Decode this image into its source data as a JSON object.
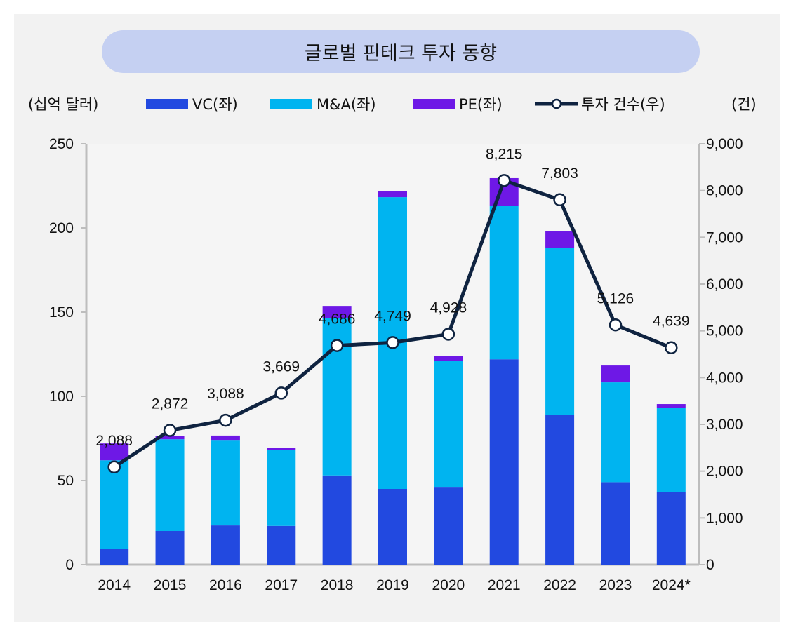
{
  "title": "글로벌 핀테크 투자 동향",
  "left_unit": "(십억 달러)",
  "right_unit": "(건)",
  "legend": [
    {
      "label": "VC(좌)",
      "color": "#2249e0",
      "type": "bar"
    },
    {
      "label": "M&A(좌)",
      "color": "#00b4f0",
      "type": "bar"
    },
    {
      "label": "PE(좌)",
      "color": "#6e18e6",
      "type": "bar"
    },
    {
      "label": "투자 건수(우)",
      "color": "#0f2340",
      "type": "line"
    }
  ],
  "chart_data": {
    "type": "bar",
    "title": "글로벌 핀테크 투자 동향",
    "xlabel": "",
    "ylabel": "(십억 달러)",
    "y2label": "(건)",
    "categories": [
      "2014",
      "2015",
      "2016",
      "2017",
      "2018",
      "2019",
      "2020",
      "2021",
      "2022",
      "2023",
      "2024*"
    ],
    "ylim": [
      0,
      250
    ],
    "yticks": [
      0,
      50,
      100,
      150,
      200,
      250
    ],
    "y2lim": [
      0,
      9000
    ],
    "y2ticks": [
      "0",
      "1,000",
      "2,000",
      "3,000",
      "4,000",
      "5,000",
      "6,000",
      "7,000",
      "8,000",
      "9,000"
    ],
    "stacked": true,
    "series": [
      {
        "name": "VC(좌)",
        "axis": "left",
        "values": [
          9.5,
          20,
          23.3,
          23,
          53,
          45,
          45.8,
          122,
          88.8,
          49,
          43
        ]
      },
      {
        "name": "M&A(좌)",
        "axis": "left",
        "values": [
          52.5,
          54.5,
          50.4,
          45,
          93.5,
          173.3,
          75.2,
          91.3,
          99.5,
          59.3,
          50
        ]
      },
      {
        "name": "PE(좌)",
        "axis": "left",
        "values": [
          10,
          2,
          3,
          1.5,
          7.2,
          3.4,
          3,
          16.3,
          9.7,
          10,
          2.4
        ]
      },
      {
        "name": "투자 건수(우)",
        "axis": "right",
        "type": "line",
        "values": [
          2088,
          2872,
          3088,
          3669,
          4686,
          4749,
          4928,
          8215,
          7803,
          5126,
          4639
        ],
        "labels": [
          "2,088",
          "2,872",
          "3,088",
          "3,669",
          "4,686",
          "4,749",
          "4,928",
          "8,215",
          "7,803",
          "5,126",
          "4,639"
        ]
      }
    ],
    "grid": false,
    "legend_position": "top"
  }
}
